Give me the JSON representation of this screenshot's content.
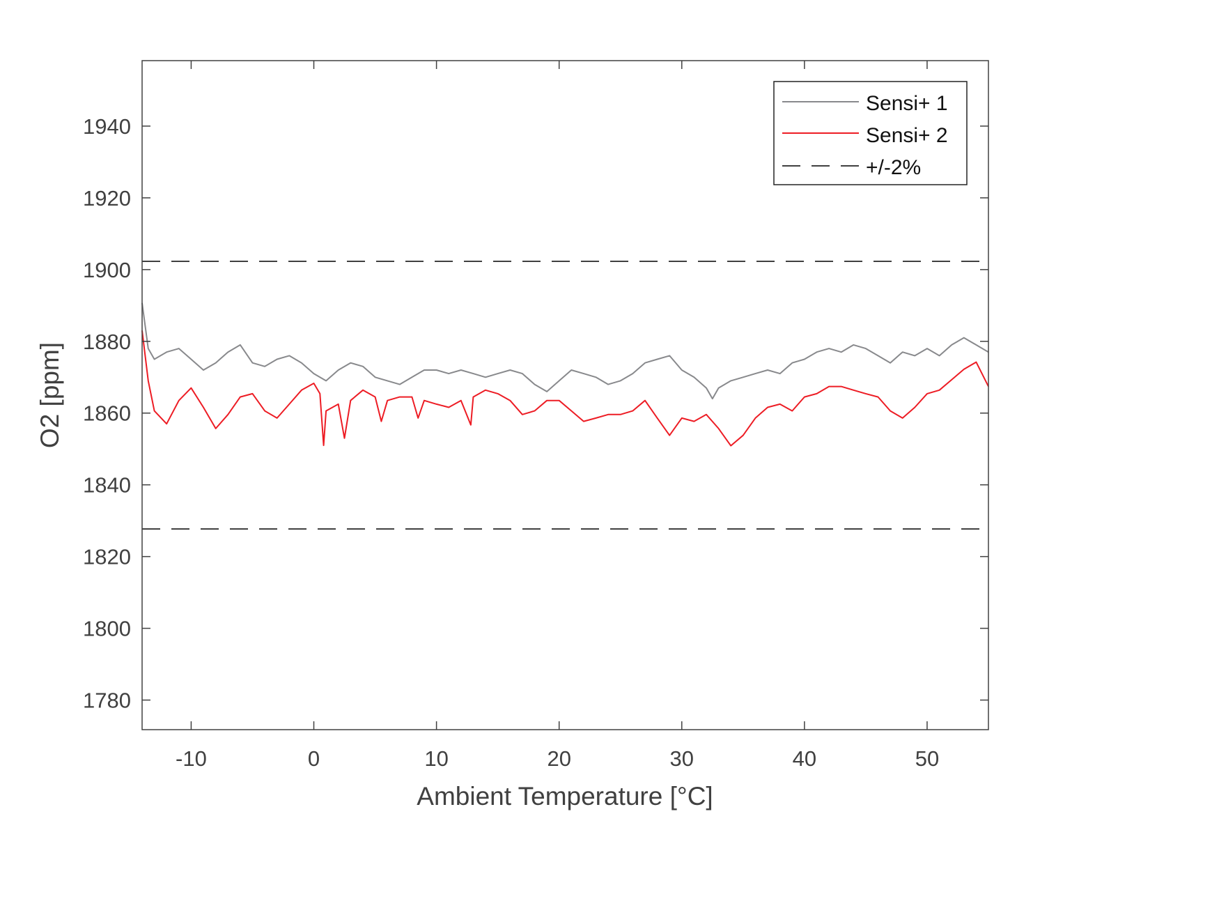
{
  "chart_data": {
    "type": "line",
    "title": "",
    "xlabel": "Ambient Temperature [°C]",
    "ylabel": "O2 [ppm]",
    "xlim": [
      -14,
      55
    ],
    "ylim": [
      1771.75,
      1958.25
    ],
    "xticks": [
      -10,
      0,
      10,
      20,
      30,
      40,
      50
    ],
    "yticks": [
      1780,
      1800,
      1820,
      1840,
      1860,
      1880,
      1900,
      1920,
      1940
    ],
    "grid": false,
    "legend_position": "top-right",
    "series": [
      {
        "name": "Sensi+ 1",
        "color": "#88898c",
        "style": "solid",
        "x": [
          -14,
          -13.5,
          -13,
          -12,
          -11,
          -10,
          -9,
          -8,
          -7,
          -6,
          -5,
          -4,
          -3,
          -2,
          -1,
          0,
          1,
          2,
          3,
          4,
          5,
          6,
          7,
          8,
          9,
          10,
          11,
          12,
          13,
          14,
          15,
          16,
          17,
          18,
          19,
          20,
          21,
          22,
          23,
          24,
          25,
          26,
          27,
          28,
          29,
          30,
          31,
          32,
          32.5,
          33,
          34,
          35,
          36,
          37,
          38,
          39,
          40,
          41,
          42,
          43,
          44,
          45,
          46,
          47,
          48,
          49,
          50,
          51,
          52,
          53,
          54,
          55
        ],
        "y": [
          1890.7,
          1878,
          1875,
          1877,
          1878,
          1875,
          1872,
          1874,
          1877,
          1879,
          1874,
          1873,
          1875,
          1876,
          1874,
          1871,
          1869,
          1872,
          1874,
          1873,
          1870,
          1869,
          1868,
          1870,
          1872,
          1872,
          1871,
          1872,
          1871,
          1870,
          1871,
          1872,
          1871,
          1868,
          1866,
          1869,
          1872,
          1871,
          1870,
          1868,
          1869,
          1871,
          1874,
          1875,
          1876,
          1872,
          1870,
          1867,
          1864,
          1867,
          1869,
          1870,
          1871,
          1872,
          1871,
          1874,
          1875,
          1877,
          1878,
          1877,
          1879,
          1878,
          1876,
          1874,
          1877,
          1876,
          1878,
          1876,
          1879,
          1881,
          1879,
          1877
        ]
      },
      {
        "name": "Sensi+ 2",
        "color": "#ed1c24",
        "style": "solid",
        "x": [
          -14,
          -13.5,
          -13,
          -12,
          -11,
          -10,
          -9,
          -8,
          -7,
          -6,
          -5,
          -4,
          -3,
          -2,
          -1,
          0,
          0.5,
          0.8,
          1,
          2,
          2.5,
          3,
          4,
          5,
          5.5,
          6,
          7,
          8,
          8.5,
          9,
          10,
          11,
          12,
          12.8,
          13,
          14,
          15,
          16,
          17,
          18,
          19,
          20,
          21,
          22,
          23,
          24,
          25,
          26,
          27,
          28,
          29,
          30,
          31,
          32,
          33,
          34,
          35,
          36,
          37,
          38,
          39,
          40,
          41,
          42,
          43,
          44,
          45,
          46,
          47,
          48,
          49,
          50,
          51,
          52,
          53,
          54,
          55
        ],
        "y": [
          1883,
          1869,
          1860.6,
          1857,
          1863.5,
          1867,
          1861.6,
          1855.7,
          1859.6,
          1864.5,
          1865.4,
          1860.6,
          1858.6,
          1862.5,
          1866.4,
          1868.3,
          1865.4,
          1851,
          1860.6,
          1862.5,
          1853,
          1863.5,
          1866.4,
          1864.5,
          1857.7,
          1863.5,
          1864.5,
          1864.5,
          1858.6,
          1863.5,
          1862.5,
          1861.6,
          1863.5,
          1856.7,
          1864.5,
          1866.4,
          1865.4,
          1863.5,
          1859.6,
          1860.6,
          1863.5,
          1863.5,
          1860.6,
          1857.7,
          1858.6,
          1859.6,
          1859.6,
          1860.6,
          1863.5,
          1858.6,
          1853.8,
          1858.6,
          1857.7,
          1859.6,
          1855.7,
          1850.9,
          1853.8,
          1858.6,
          1861.6,
          1862.5,
          1860.6,
          1864.5,
          1865.4,
          1867.4,
          1867.4,
          1866.4,
          1865.4,
          1864.5,
          1860.6,
          1858.6,
          1861.6,
          1865.4,
          1866.4,
          1869.3,
          1872.2,
          1874.2,
          1867.4
        ]
      },
      {
        "name": "+/-2%",
        "color": "#404040",
        "style": "dashed",
        "x": [
          -14,
          55
        ],
        "upper": 1902.3,
        "lower": 1827.7
      }
    ]
  }
}
